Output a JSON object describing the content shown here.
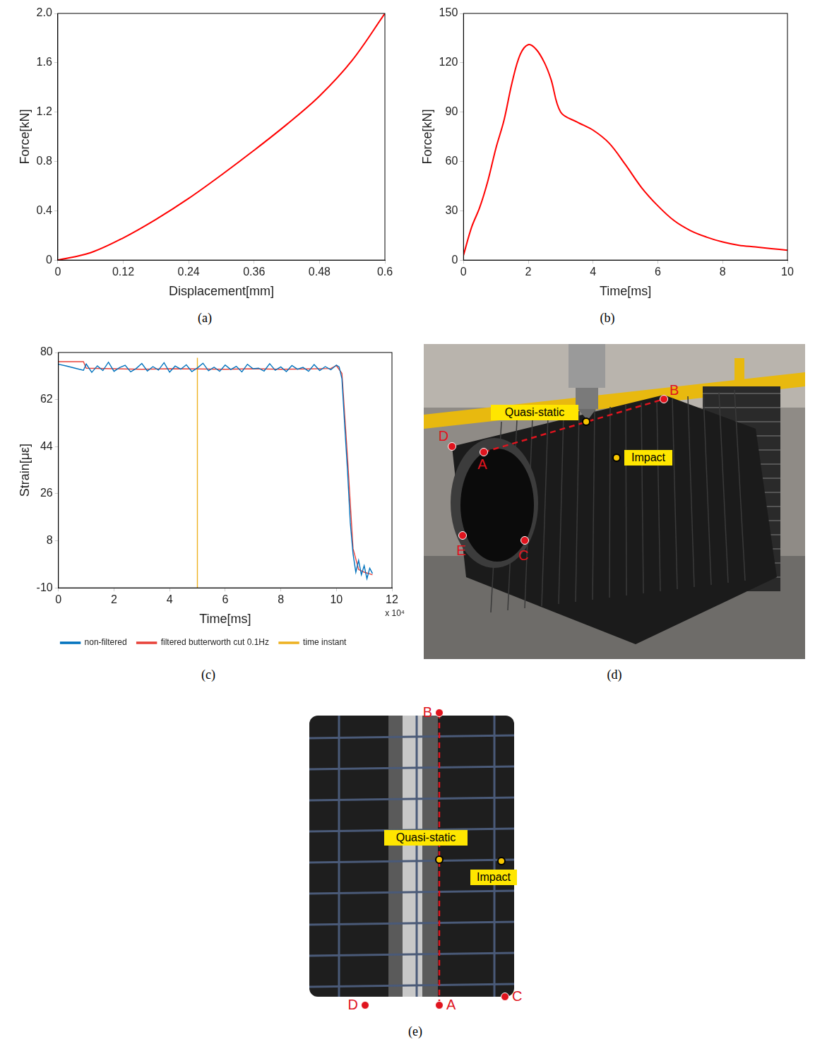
{
  "chart_data": [
    {
      "panel": "(a)",
      "type": "line",
      "x_label": "Displacement[mm]",
      "y_label": "Force[kN]",
      "x": [
        0,
        0.06,
        0.12,
        0.18,
        0.24,
        0.3,
        0.36,
        0.42,
        0.48,
        0.54,
        0.6
      ],
      "values": [
        0,
        0.06,
        0.18,
        0.33,
        0.5,
        0.69,
        0.89,
        1.1,
        1.33,
        1.62,
        2.0
      ],
      "color": "#ff0000",
      "xlim": [
        0,
        0.6
      ],
      "xticks": [
        0,
        0.12,
        0.24,
        0.36,
        0.48,
        0.6
      ],
      "ylim": [
        0,
        2
      ],
      "yticks": [
        0,
        0.4,
        0.8,
        1.2,
        1.6,
        {
          "value": 2,
          "label": "2.0"
        }
      ],
      "grid": false
    },
    {
      "panel": "(b)",
      "type": "line",
      "x_label": "Time[ms]",
      "y_label": "Force[kN]",
      "x": [
        0,
        0.25,
        0.5,
        0.75,
        1,
        1.25,
        1.5,
        1.75,
        2,
        2.25,
        2.5,
        2.7,
        3,
        3.5,
        4,
        4.5,
        5,
        5.5,
        6,
        6.5,
        7,
        7.5,
        8,
        8.5,
        9,
        9.5,
        10
      ],
      "values": [
        3,
        20,
        32,
        48,
        68,
        85,
        108,
        125,
        131,
        128,
        120,
        110,
        90,
        84,
        79,
        71,
        58,
        44,
        33,
        24,
        18,
        14,
        11,
        9,
        8,
        7,
        6
      ],
      "color": "#ff0000",
      "xlim": [
        0,
        10
      ],
      "xticks": [
        0,
        2,
        4,
        6,
        8,
        10
      ],
      "ylim": [
        0,
        150
      ],
      "yticks": [
        0,
        30,
        60,
        90,
        120,
        150
      ],
      "grid": false
    },
    {
      "panel": "(c)",
      "type": "line",
      "x_label": "Time[ms]",
      "y_label": "Strain[με]",
      "annotations": [
        "x 10⁴"
      ],
      "series": [
        {
          "name": "non-filtered",
          "color": "#0072bd",
          "x": [
            0,
            0.3,
            0.6,
            0.9,
            1,
            1.2,
            1.4,
            1.6,
            1.8,
            2,
            2.2,
            2.4,
            2.6,
            2.8,
            3,
            3.2,
            3.4,
            3.6,
            3.8,
            4,
            4.2,
            4.4,
            4.6,
            4.8,
            5,
            5.2,
            5.4,
            5.6,
            5.8,
            6,
            6.2,
            6.4,
            6.6,
            6.8,
            7,
            7.2,
            7.4,
            7.6,
            7.8,
            8,
            8.2,
            8.4,
            8.6,
            8.8,
            9,
            9.2,
            9.4,
            9.6,
            9.8,
            10,
            10.1,
            10.2,
            10.3,
            10.4,
            10.5,
            10.6,
            10.7,
            10.8,
            10.9,
            11,
            11.1,
            11.2,
            11.3
          ],
          "values": [
            75.5,
            74.8,
            74,
            73.2,
            75.6,
            72.4,
            74.9,
            73.1,
            76.3,
            72.8,
            74.2,
            75.1,
            72.6,
            73.9,
            75.8,
            72.9,
            74.6,
            73.3,
            76.1,
            72.5,
            74.8,
            73.6,
            75.3,
            72.7,
            74.1,
            75.9,
            73.0,
            74.4,
            72.8,
            75.2,
            73.5,
            74.7,
            72.6,
            75.5,
            73.8,
            74.0,
            72.9,
            75.7,
            73.2,
            74.5,
            72.7,
            75.0,
            73.6,
            74.3,
            72.8,
            75.4,
            73.1,
            74.6,
            73.4,
            75.2,
            74.5,
            70,
            52,
            35,
            15,
            3,
            -4,
            0.5,
            -5,
            -1.5,
            -6.5,
            -2.5,
            -4.5
          ]
        },
        {
          "name": "filtered butterworth cut 0.1Hz",
          "color": "#e8413a",
          "x": [
            0,
            0.9,
            1,
            2,
            3,
            4,
            5,
            6,
            7,
            8,
            9,
            9.8,
            10,
            10.2,
            10.4,
            10.6,
            10.8,
            11,
            11.3
          ],
          "values": [
            76.5,
            76.5,
            74,
            73.8,
            73.6,
            73.8,
            73.7,
            73.6,
            73.8,
            73.6,
            73.7,
            73.9,
            75,
            72,
            40,
            5,
            -3,
            -4,
            -5
          ]
        },
        {
          "name": "time instant",
          "color": "#edb120",
          "x": [
            5,
            5
          ],
          "values": [
            -10,
            78
          ]
        }
      ],
      "xlim": [
        0,
        12
      ],
      "xticks": [
        0,
        2,
        4,
        6,
        8,
        10,
        12
      ],
      "ylim": [
        -10,
        80
      ],
      "yticks": [
        -10,
        8,
        26,
        44,
        62,
        80
      ],
      "grid": false,
      "legend": "bottom"
    }
  ],
  "diagrams": [
    {
      "panel": "(d)",
      "points": [
        "A",
        "B",
        "C",
        "D",
        "E"
      ],
      "labels": [
        "Quasi-static",
        "Impact"
      ]
    },
    {
      "panel": "(e)",
      "points": [
        "B",
        "D",
        "A",
        "C"
      ],
      "labels": [
        "Quasi-static",
        "Impact"
      ]
    }
  ]
}
